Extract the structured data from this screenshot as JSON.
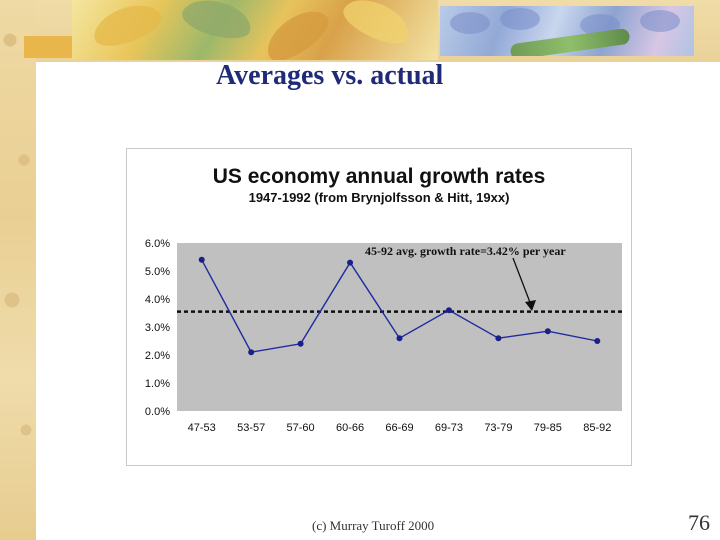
{
  "slide": {
    "title": "Averages vs. actual",
    "footer": "(c) Murray Turoff 2000",
    "page_number": "76"
  },
  "chart_data": {
    "type": "line",
    "title": "US economy annual growth rates",
    "subtitle": "1947-1992 (from Brynjolfsson & Hitt, 19xx)",
    "categories": [
      "47-53",
      "53-57",
      "57-60",
      "60-66",
      "66-69",
      "69-73",
      "73-79",
      "79-85",
      "85-92"
    ],
    "series": [
      {
        "values": [
          5.4,
          2.1,
          2.4,
          5.3,
          2.6,
          3.6,
          2.6,
          2.85,
          2.5
        ]
      }
    ],
    "reference_line": {
      "value": 3.55,
      "style": "dotted"
    },
    "annotation": {
      "text": "45-92 avg. growth rate=3.42% per year"
    },
    "ylim": [
      0,
      6
    ],
    "yticks": [
      "0.0%",
      "1.0%",
      "2.0%",
      "3.0%",
      "4.0%",
      "5.0%",
      "6.0%"
    ],
    "grid": false,
    "plot_background": "#c0c0c0",
    "line_color": "#1f2a9e",
    "marker_color": "#1a1f8a"
  }
}
